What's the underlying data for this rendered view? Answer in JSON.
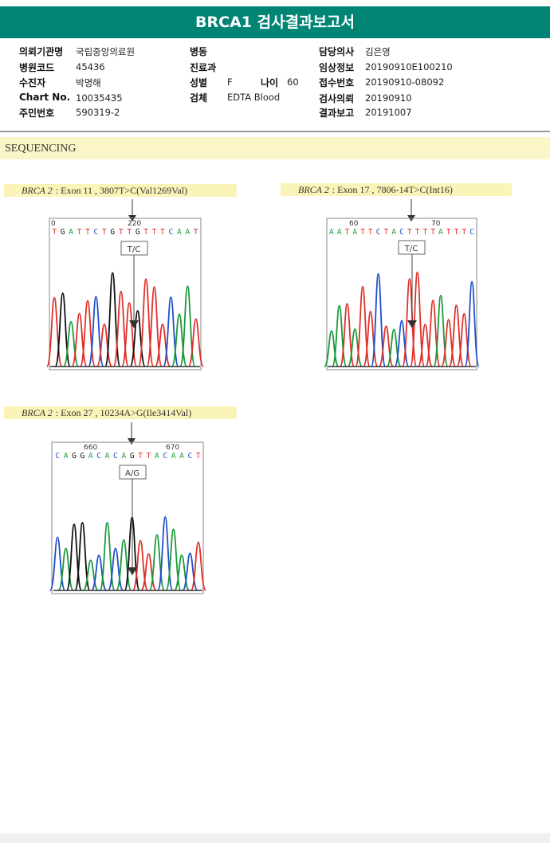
{
  "report_title": "BRCA1 검사결과보고서",
  "patient": {
    "col1": [
      {
        "label": "의뢰기관명",
        "value": "국립중앙의료원"
      },
      {
        "label": "병원코드",
        "value": "45436"
      },
      {
        "label": "수진자",
        "value": "박명해"
      },
      {
        "label": "Chart No.",
        "value": "10035435"
      },
      {
        "label": "주민번호",
        "value": "590319-2"
      }
    ],
    "col2": [
      {
        "label": "병동",
        "value": ""
      },
      {
        "label": "진료과",
        "value": ""
      },
      {
        "label": "성별",
        "value": "F"
      },
      {
        "label": "검체",
        "value": "EDTA Blood"
      }
    ],
    "age": {
      "label": "나이",
      "value": "60"
    },
    "col3": [
      {
        "label": "담당의사",
        "value": "김은영"
      },
      {
        "label": "임상정보",
        "value": "20190910E100210"
      },
      {
        "label": "접수번호",
        "value": "20190910-08092"
      },
      {
        "label": "검사의뢰",
        "value": "20190910"
      },
      {
        "label": "결과보고",
        "value": "20191007"
      }
    ]
  },
  "section_title": "SEQUENCING",
  "variants": [
    {
      "gene": "BRCA 2",
      "desc": ": Exon 11 , 3807T>C(Val1269Val)",
      "call": "T/C",
      "pos_labels": [
        "0",
        "220"
      ],
      "bases": "TGATTCTGTTGTTTCAAT"
    },
    {
      "gene": "BRCA 2",
      "desc": ": Exon 17 , 7806-14T>C(Int16)",
      "call": "T/C",
      "pos_labels": [
        "60",
        "70"
      ],
      "bases": "AATATTCTACTTTTATTTC"
    },
    {
      "gene": "BRCA 2",
      "desc": ": Exon 27 , 10234A>G(Ile3414Val)",
      "call": "A/G",
      "pos_labels": [
        "660",
        "670"
      ],
      "bases": "CAGGACACAGTTACAACT"
    }
  ],
  "colors": {
    "header_bg": "#008575",
    "caption_bg": "#fbf4b8",
    "A": "#1a9a3a",
    "C": "#1f4fc8",
    "G": "#111111",
    "T": "#e0302a"
  }
}
